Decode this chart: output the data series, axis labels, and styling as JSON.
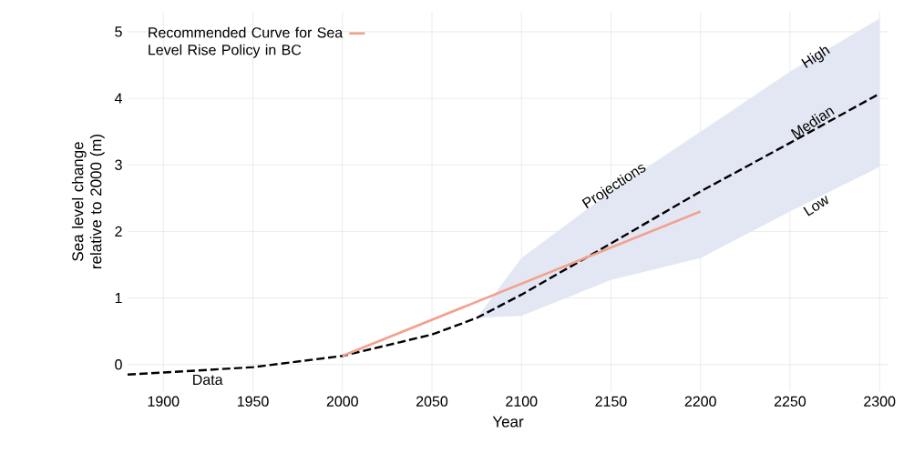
{
  "chart_data": {
    "type": "line",
    "xlabel": "Year",
    "ylabel": "Sea level change relative to 2000 (m)",
    "xlim": [
      1880,
      2305
    ],
    "ylim": [
      -0.4,
      5.3
    ],
    "xticks": [
      1900,
      1950,
      2000,
      2050,
      2100,
      2150,
      2200,
      2250,
      2300
    ],
    "yticks": [
      0,
      1,
      2,
      3,
      4,
      5
    ],
    "grid": true,
    "legend": "top left",
    "series": [
      {
        "color": "#000000",
        "line_style": "dashed",
        "x": [
          1880,
          1900,
          1950,
          2000,
          2050,
          2075,
          2100,
          2150,
          2200,
          2250,
          2300
        ],
        "values": [
          -0.15,
          -0.12,
          -0.04,
          0.13,
          0.45,
          0.7,
          1.05,
          1.82,
          2.6,
          3.33,
          4.07
        ],
        "lower": [
          null,
          null,
          null,
          null,
          null,
          0.7,
          0.73,
          1.27,
          1.6,
          2.3,
          2.97
        ],
        "upper": [
          null,
          null,
          null,
          null,
          null,
          0.7,
          1.6,
          2.6,
          3.5,
          4.4,
          5.2
        ]
      },
      {
        "name": "Recommended Curve for Sea Level Rise Policy in BC",
        "color": "#f4a08c",
        "line_style": "solid",
        "x": [
          2000,
          2200
        ],
        "values": [
          0.13,
          2.3
        ]
      }
    ],
    "annotations": [
      "Data",
      "Projections",
      "High",
      "Median",
      "Low"
    ]
  }
}
